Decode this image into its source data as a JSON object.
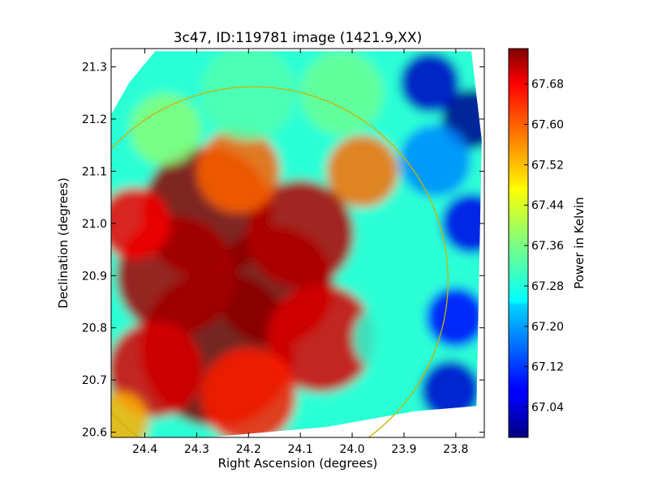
{
  "chart_data": {
    "type": "heatmap",
    "title": "3c47, ID:119781 image (1421.9,XX)",
    "xlabel": "Right Ascension (degrees)",
    "ylabel": "Declination (degrees)",
    "colorbar_label": "Power in Kelvin",
    "colormap": "jet",
    "xlim": [
      24.465,
      23.745
    ],
    "ylim": [
      20.59,
      21.335
    ],
    "x_ticks": [
      24.4,
      24.3,
      24.2,
      24.1,
      24.0,
      23.9,
      23.8
    ],
    "x_tick_labels": [
      "24.4",
      "24.3",
      "24.2",
      "24.1",
      "24.0",
      "23.9",
      "23.8"
    ],
    "y_ticks": [
      20.6,
      20.7,
      20.8,
      20.9,
      21.0,
      21.1,
      21.2,
      21.3
    ],
    "y_tick_labels": [
      "20.6",
      "20.7",
      "20.8",
      "20.9",
      "21.0",
      "21.1",
      "21.2",
      "21.3"
    ],
    "colorbar_range": [
      66.98,
      67.75
    ],
    "colorbar_ticks": [
      67.04,
      67.12,
      67.2,
      67.28,
      67.36,
      67.44,
      67.52,
      67.6,
      67.68
    ],
    "colorbar_tick_labels": [
      "67.04",
      "67.12",
      "67.20",
      "67.28",
      "67.36",
      "67.44",
      "67.52",
      "67.60",
      "67.68"
    ],
    "circle": {
      "center_ra": 24.19,
      "center_dec": 20.89,
      "radius_deg": 0.375,
      "color": "#c8b400"
    },
    "grid": false,
    "field_outline": [
      [
        24.38,
        21.33
      ],
      [
        23.77,
        21.33
      ],
      [
        23.75,
        21.16
      ],
      [
        23.76,
        20.65
      ],
      [
        23.88,
        20.64
      ],
      [
        24.05,
        20.61
      ],
      [
        24.28,
        20.59
      ],
      [
        24.47,
        20.59
      ],
      [
        24.47,
        21.2
      ],
      [
        24.43,
        21.27
      ]
    ],
    "sources": [
      {
        "ra": 24.26,
        "dec": 20.76,
        "value": 67.75,
        "width": 0.13
      },
      {
        "ra": 24.28,
        "dec": 21.02,
        "value": 67.74,
        "width": 0.11
      },
      {
        "ra": 24.15,
        "dec": 20.88,
        "value": 67.74,
        "width": 0.1
      },
      {
        "ra": 24.34,
        "dec": 20.9,
        "value": 67.72,
        "width": 0.1
      },
      {
        "ra": 24.1,
        "dec": 20.98,
        "value": 67.71,
        "width": 0.09
      },
      {
        "ra": 24.38,
        "dec": 20.72,
        "value": 67.68,
        "width": 0.08
      },
      {
        "ra": 24.06,
        "dec": 20.78,
        "value": 67.68,
        "width": 0.09
      },
      {
        "ra": 24.42,
        "dec": 21.0,
        "value": 67.66,
        "width": 0.06
      },
      {
        "ra": 24.2,
        "dec": 20.67,
        "value": 67.63,
        "width": 0.08
      },
      {
        "ra": 23.98,
        "dec": 21.1,
        "value": 67.57,
        "width": 0.06
      },
      {
        "ra": 24.22,
        "dec": 21.1,
        "value": 67.58,
        "width": 0.07
      },
      {
        "ra": 24.45,
        "dec": 20.62,
        "value": 67.52,
        "width": 0.05
      },
      {
        "ra": 24.2,
        "dec": 21.25,
        "value": 67.33,
        "width": 0.08
      },
      {
        "ra": 24.02,
        "dec": 21.25,
        "value": 67.35,
        "width": 0.07
      },
      {
        "ra": 24.36,
        "dec": 21.18,
        "value": 67.37,
        "width": 0.06
      },
      {
        "ra": 23.9,
        "dec": 20.95,
        "value": 67.3,
        "width": 0.06
      },
      {
        "ra": 23.93,
        "dec": 20.78,
        "value": 67.3,
        "width": 0.06
      },
      {
        "ra": 23.84,
        "dec": 21.12,
        "value": 67.18,
        "width": 0.06
      },
      {
        "ra": 23.8,
        "dec": 20.82,
        "value": 67.08,
        "width": 0.05
      },
      {
        "ra": 23.81,
        "dec": 20.68,
        "value": 67.04,
        "width": 0.05
      },
      {
        "ra": 23.85,
        "dec": 21.27,
        "value": 67.03,
        "width": 0.05
      },
      {
        "ra": 23.77,
        "dec": 21.2,
        "value": 66.99,
        "width": 0.05
      },
      {
        "ra": 23.77,
        "dec": 21.0,
        "value": 67.06,
        "width": 0.05
      }
    ]
  }
}
